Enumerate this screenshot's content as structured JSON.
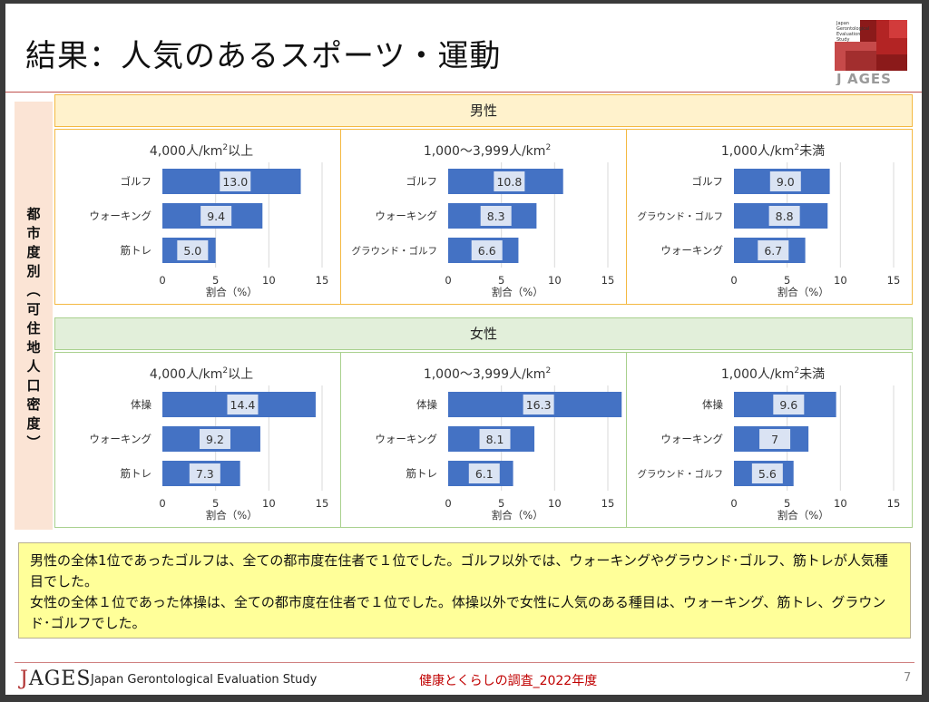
{
  "title": "結果：人気のあるスポーツ・運動",
  "logo": {
    "line1": "Japan",
    "line2": "Gerontological",
    "line3": "Evaluation",
    "line4": "Study",
    "brand": "AGES",
    "brand_mark": "J"
  },
  "side_label": "都市度別（可住地人口密度）",
  "colors": {
    "bar": "#4472c4",
    "label_box": "#dae3f3",
    "male_banner": "#fff2cc",
    "male_border": "#f4b942",
    "female_banner": "#e2efda",
    "female_border": "#a9d18e",
    "accent": "#c0504d"
  },
  "male": {
    "label": "男性",
    "charts": [
      {
        "chart_data": {
          "type": "bar",
          "orientation": "horizontal",
          "title_main": "4,000人/km",
          "title_sup": "2",
          "title_tail": "以上",
          "categories": [
            "ゴルフ",
            "ウォーキング",
            "筋トレ"
          ],
          "values": [
            13.0,
            9.4,
            5.0
          ],
          "value_labels": [
            "13.0",
            "9.4",
            "5.0"
          ],
          "xlabel": "割合（%）",
          "xlim": [
            0,
            15
          ],
          "xticks": [
            "0",
            "5",
            "10",
            "15"
          ],
          "grid": true
        }
      },
      {
        "chart_data": {
          "type": "bar",
          "orientation": "horizontal",
          "title_main": "1,000～3,999人/km",
          "title_sup": "2",
          "title_tail": "",
          "categories": [
            "ゴルフ",
            "ウォーキング",
            "グラウンド・ゴルフ"
          ],
          "values": [
            10.8,
            8.3,
            6.6
          ],
          "value_labels": [
            "10.8",
            "8.3",
            "6.6"
          ],
          "xlabel": "割合（%）",
          "xlim": [
            0,
            15
          ],
          "xticks": [
            "0",
            "5",
            "10",
            "15"
          ],
          "grid": true
        }
      },
      {
        "chart_data": {
          "type": "bar",
          "orientation": "horizontal",
          "title_main": "1,000人/km",
          "title_sup": "2",
          "title_tail": "未満",
          "categories": [
            "ゴルフ",
            "グラウンド・ゴルフ",
            "ウォーキング"
          ],
          "values": [
            9.0,
            8.8,
            6.7
          ],
          "value_labels": [
            "9.0",
            "8.8",
            "6.7"
          ],
          "xlabel": "割合（%）",
          "xlim": [
            0,
            15
          ],
          "xticks": [
            "0",
            "5",
            "10",
            "15"
          ],
          "grid": true
        }
      }
    ]
  },
  "female": {
    "label": "女性",
    "charts": [
      {
        "chart_data": {
          "type": "bar",
          "orientation": "horizontal",
          "title_main": "4,000人/km",
          "title_sup": "2",
          "title_tail": "以上",
          "categories": [
            "体操",
            "ウォーキング",
            "筋トレ"
          ],
          "values": [
            14.4,
            9.2,
            7.3
          ],
          "value_labels": [
            "14.4",
            "9.2",
            "7.3"
          ],
          "xlabel": "割合（%）",
          "xlim": [
            0,
            15
          ],
          "xticks": [
            "0",
            "5",
            "10",
            "15"
          ],
          "grid": true
        }
      },
      {
        "chart_data": {
          "type": "bar",
          "orientation": "horizontal",
          "title_main": "1,000～3,999人/km",
          "title_sup": "2",
          "title_tail": "",
          "categories": [
            "体操",
            "ウォーキング",
            "筋トレ"
          ],
          "values": [
            16.3,
            8.1,
            6.1
          ],
          "value_labels": [
            "16.3",
            "8.1",
            "6.1"
          ],
          "xlabel": "割合（%）",
          "xlim": [
            0,
            15
          ],
          "xticks": [
            "0",
            "5",
            "10",
            "15"
          ],
          "grid": true
        }
      },
      {
        "chart_data": {
          "type": "bar",
          "orientation": "horizontal",
          "title_main": "1,000人/km",
          "title_sup": "2",
          "title_tail": "未満",
          "categories": [
            "体操",
            "ウォーキング",
            "グラウンド・ゴルフ"
          ],
          "values": [
            9.6,
            7.0,
            5.6
          ],
          "value_labels": [
            "9.6",
            "7",
            "5.6"
          ],
          "xlabel": "割合（%）",
          "xlim": [
            0,
            15
          ],
          "xticks": [
            "0",
            "5",
            "10",
            "15"
          ],
          "grid": true
        }
      }
    ]
  },
  "note": {
    "para1": "男性の全体1位であったゴルフは、全ての都市度在住者で１位でした。ゴルフ以外では、ウォーキングやグラウンド･ゴルフ、筋トレが人気種目でした。",
    "para2": "女性の全体１位であった体操は、全ての都市度在住者で１位でした。体操以外で女性に人気のある種目は、ウォーキング、筋トレ、グラウンド･ゴルフでした。"
  },
  "footer": {
    "logo_j": "J",
    "logo_rest": "AGES",
    "org": "Japan Gerontological Evaluation Study",
    "survey": "健康とくらしの調査_2022年度",
    "page": "7"
  }
}
